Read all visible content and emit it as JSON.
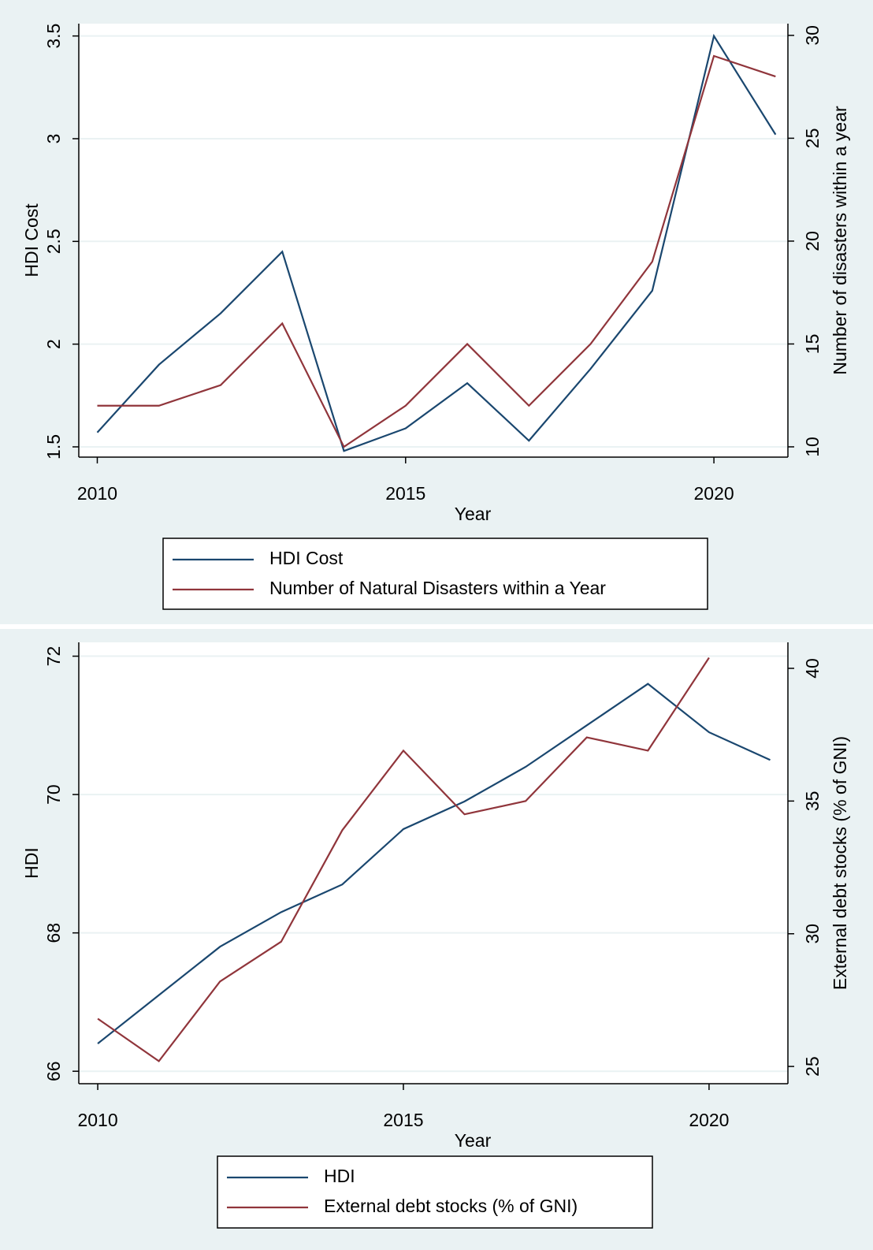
{
  "chart_data": [
    {
      "type": "line",
      "x": [
        2010,
        2011,
        2012,
        2013,
        2014,
        2015,
        2016,
        2017,
        2018,
        2019,
        2020,
        2021
      ],
      "xlim": [
        2009.7,
        2021.2
      ],
      "xticks": [
        2010,
        2015,
        2020
      ],
      "x_label": "Year",
      "ylim": [
        1.45,
        3.56
      ],
      "yticks": [
        1.5,
        2,
        2.5,
        3,
        3.5
      ],
      "y_label": "HDI Cost",
      "y2lim": [
        9.5,
        30.57
      ],
      "y2ticks": [
        10,
        15,
        20,
        25,
        30
      ],
      "y2_label": "Number of disasters within a year",
      "grid": true,
      "series": [
        {
          "name": "HDI Cost",
          "color": "#1a476f",
          "values": [
            1.57,
            1.9,
            2.15,
            2.45,
            1.48,
            1.59,
            1.81,
            1.53,
            1.88,
            2.26,
            3.5,
            3.02
          ]
        },
        {
          "name": "Number of Natural Disasters within a Year",
          "color": "#90353b",
          "axis": "y2",
          "values": [
            12,
            12,
            13,
            16,
            10,
            12,
            15,
            12,
            15,
            19,
            29,
            28
          ]
        }
      ]
    },
    {
      "type": "line",
      "x": [
        2010,
        2011,
        2012,
        2013,
        2014,
        2015,
        2016,
        2017,
        2018,
        2019,
        2020,
        2021
      ],
      "xlim": [
        2009.69,
        2021.29
      ],
      "xticks": [
        2010,
        2015,
        2020
      ],
      "x_label": "Year",
      "ylim": [
        65.82,
        72.2
      ],
      "yticks": [
        66,
        68,
        70,
        72
      ],
      "y_label": "HDI",
      "y2lim": [
        24.35,
        40.98
      ],
      "y2ticks": [
        25,
        30,
        35,
        40
      ],
      "y2_label": "External debt stocks (% of GNI)",
      "grid": true,
      "series": [
        {
          "name": "HDI",
          "color": "#1a476f",
          "values": [
            66.4,
            67.1,
            67.8,
            68.3,
            68.7,
            69.5,
            69.9,
            70.4,
            71.0,
            71.6,
            70.9,
            70.5
          ]
        },
        {
          "name": "External debt stocks (% of GNI)",
          "color": "#90353b",
          "axis": "y2",
          "values": [
            26.8,
            25.2,
            28.2,
            29.7,
            33.9,
            36.9,
            34.5,
            35.0,
            37.4,
            36.9,
            40.4,
            null
          ]
        }
      ]
    }
  ]
}
